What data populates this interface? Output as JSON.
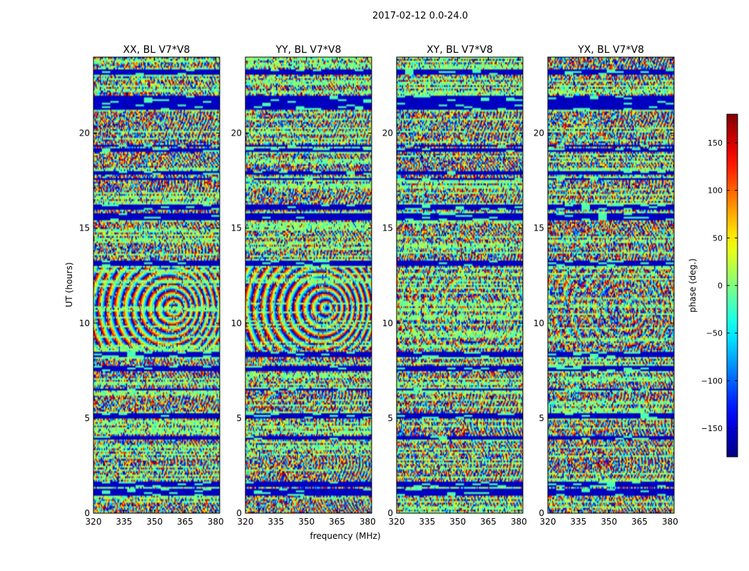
{
  "figure": {
    "suptitle": "2017-02-12 0.0-24.0"
  },
  "chart_data": {
    "type": "heatmap",
    "suptitle": "2017-02-12 0.0-24.0",
    "xlabel": "frequency (MHz)",
    "ylabel": "UT (hours)",
    "xlim": [
      320,
      382
    ],
    "ylim": [
      0,
      24
    ],
    "xticks": [
      "320",
      "335",
      "350",
      "365",
      "380"
    ],
    "xtick_values": [
      320,
      335,
      350,
      365,
      380
    ],
    "yticks": [
      "0",
      "5",
      "10",
      "15",
      "20"
    ],
    "ytick_values": [
      0,
      5,
      10,
      15,
      20
    ],
    "colormap": "jet",
    "panels": [
      {
        "title": "XX, BL V7*V8",
        "product": "XX"
      },
      {
        "title": "YY, BL V7*V8",
        "product": "YY"
      },
      {
        "title": "XY, BL V7*V8",
        "product": "XY"
      },
      {
        "title": "YX, BL V7*V8",
        "product": "YX"
      }
    ],
    "colorbar": {
      "label": "phase (deg.)",
      "range": [
        -180,
        180
      ],
      "ticks": [
        "150",
        "100",
        "50",
        "0",
        "−50",
        "−100",
        "−150"
      ],
      "tick_values": [
        150,
        100,
        50,
        0,
        -50,
        -100,
        -150
      ]
    },
    "flagged_ut_bands": [
      [
        0.95,
        1.25
      ],
      [
        1.42,
        1.62
      ],
      [
        3.88,
        4.05
      ],
      [
        4.95,
        5.22
      ],
      [
        6.42,
        6.6
      ],
      [
        7.5,
        7.72
      ],
      [
        8.2,
        8.5
      ],
      [
        13.0,
        13.25
      ],
      [
        15.45,
        15.75
      ],
      [
        16.0,
        16.22
      ],
      [
        17.5,
        17.62
      ],
      [
        17.85,
        18.02
      ],
      [
        19.0,
        19.2
      ],
      [
        19.3,
        19.42
      ],
      [
        21.25,
        21.95
      ],
      [
        23.12,
        23.32
      ]
    ]
  }
}
